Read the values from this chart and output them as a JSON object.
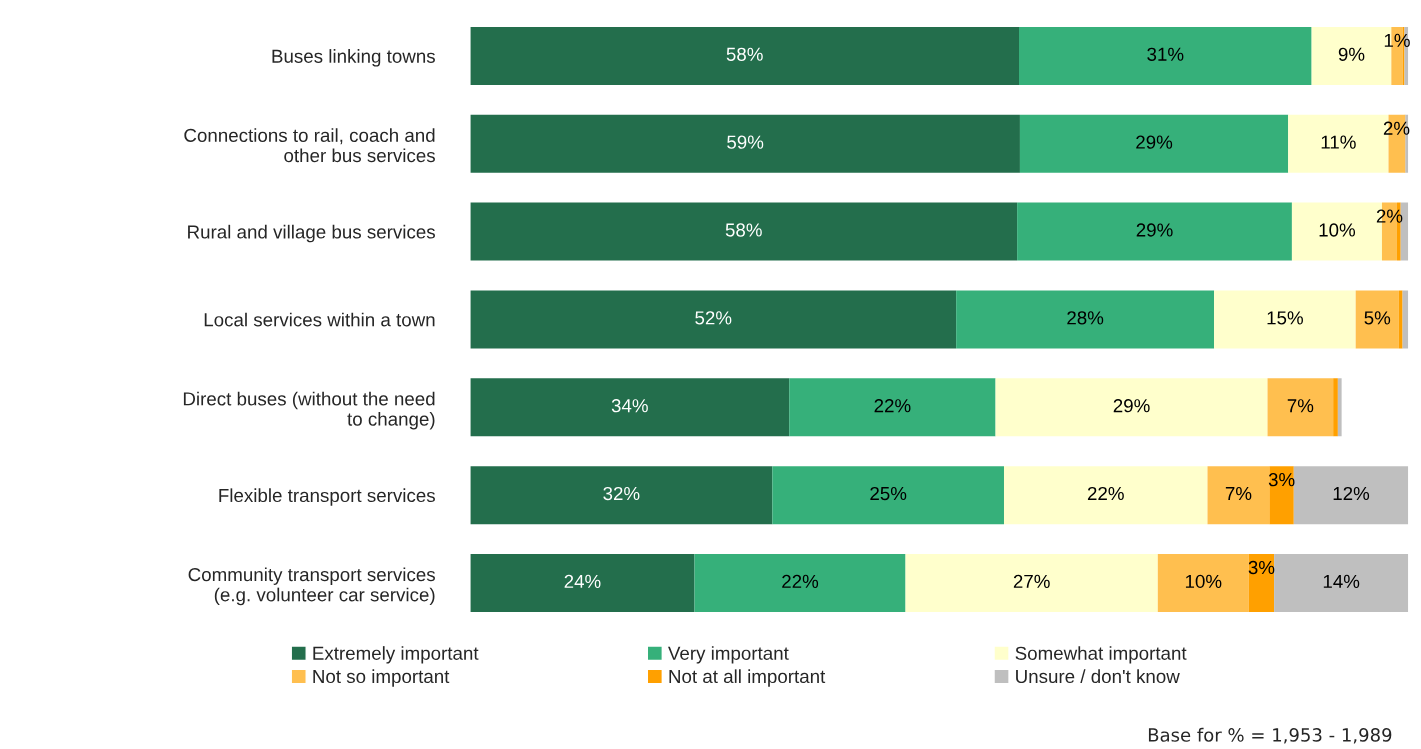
{
  "chart_data": {
    "type": "bar",
    "orientation": "horizontal",
    "stacked": true,
    "categories": [
      "Buses linking towns",
      "Connections to rail, coach and other bus services",
      "Rural and village bus services",
      "Local services within a town",
      "Direct buses (without the need to change)",
      "Flexible transport services",
      "Community transport services (e.g. volunteer car service)"
    ],
    "series": [
      {
        "name": "Extremely important",
        "color": "#236e4c",
        "values": [
          58.5,
          58.6,
          58.3,
          51.8,
          34,
          32.2,
          23.9
        ],
        "value_labels": [
          "58%",
          "59%",
          "58%",
          "52%",
          "34%",
          "32%",
          "24%"
        ]
      },
      {
        "name": "Very important",
        "color": "#36b07a",
        "values": [
          31.2,
          28.6,
          29.3,
          27.5,
          22,
          24.7,
          22.5
        ],
        "value_labels": [
          "31%",
          "29%",
          "29%",
          "28%",
          "22%",
          "25%",
          "22%"
        ]
      },
      {
        "name": "Somewhat important",
        "color": "#ffffcc",
        "values": [
          8.5,
          10.7,
          9.6,
          15.1,
          29,
          21.7,
          26.9
        ],
        "value_labels": [
          "9%",
          "11%",
          "10%",
          "15%",
          "29%",
          "22%",
          "27%"
        ]
      },
      {
        "name": "Not so important",
        "color": "#ffbf4f",
        "values": [
          1.2,
          1.7,
          1.6,
          4.6,
          7,
          6.6,
          9.7
        ],
        "value_labels": [
          "1%",
          "2%",
          "2%",
          "5%",
          "7%",
          "7%",
          "10%"
        ]
      },
      {
        "name": "Not at all important",
        "color": "#ffa000",
        "values": [
          0.2,
          0.1,
          0.4,
          0.4,
          0.5,
          2.6,
          2.7
        ],
        "value_labels": [
          null,
          null,
          null,
          null,
          null,
          "3%",
          "3%"
        ]
      },
      {
        "name": "Unsure / don't know",
        "color": "#bfbfbf",
        "values": [
          0.4,
          0.3,
          0.8,
          0.6,
          0.4,
          12.2,
          14.3
        ],
        "value_labels": [
          null,
          null,
          null,
          null,
          null,
          "12%",
          "14%"
        ]
      }
    ],
    "xlim": [
      0,
      100
    ],
    "tick_labels": false,
    "grid": false,
    "legend": "bottom",
    "annotations": [
      "Base for % = 1,953 - 1,989"
    ]
  }
}
